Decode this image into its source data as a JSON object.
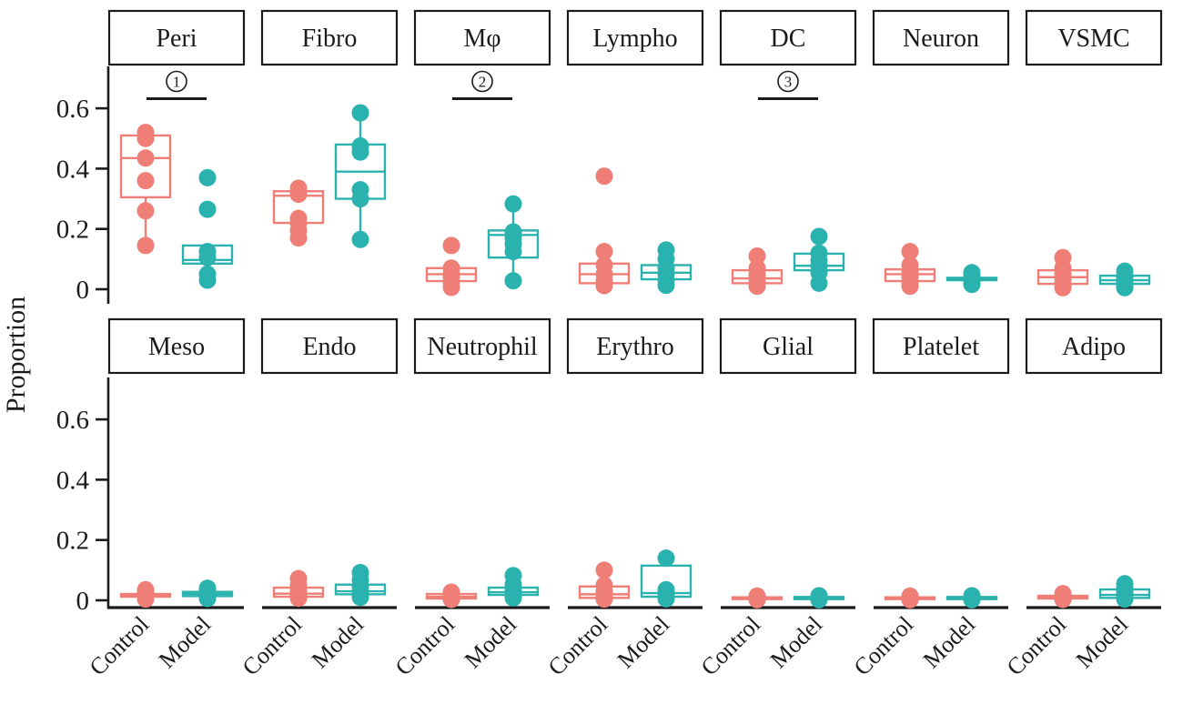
{
  "figure": {
    "ylabel": "Proportion",
    "group_labels": [
      "Control",
      "Model"
    ],
    "colors": {
      "control": "#EF7E76",
      "model": "#2AB3AE",
      "axis": "#1b1b1b",
      "panel_bg": "#ffffff"
    }
  },
  "chart_data": {
    "type": "boxplot",
    "title": "",
    "xlabel": "",
    "ylabel": "Proportion",
    "groups": [
      "Control",
      "Model"
    ],
    "group_colors": {
      "Control": "#EF7E76",
      "Model": "#2AB3AE"
    },
    "facet_grid": {
      "rows": 2,
      "cols": 7
    },
    "ylim": [
      0,
      0.75
    ],
    "grid": false,
    "legend": "none",
    "y_axis": {
      "ticks": [
        {
          "value": 0,
          "label": "0"
        },
        {
          "value": 0.2,
          "label": "0.2"
        },
        {
          "value": 0.4,
          "label": "0.4"
        },
        {
          "value": 0.6,
          "label": "0.6"
        }
      ]
    },
    "significance_note": {
      "line_y": 0.632,
      "symbol_y": 0.682
    },
    "facet_rows": [
      {
        "panels": [
          {
            "facet": "Peri",
            "significance": {
              "digit": "1",
              "symbol": "①"
            },
            "groups": {
              "Control": {
                "box": {
                  "q1": 0.305,
                  "median": 0.435,
                  "q3": 0.51
                },
                "whiskers": {
                  "min": 0.145,
                  "max": 0.52
                },
                "points": [
                  0.52,
                  0.5,
                  0.435,
                  0.36,
                  0.26,
                  0.145
                ]
              },
              "Model": {
                "box": {
                  "q1": 0.085,
                  "median": 0.097,
                  "q3": 0.145
                },
                "whiskers": {
                  "min": 0.025,
                  "max": 0.15
                },
                "points": [
                  0.37,
                  0.265,
                  0.125,
                  0.105,
                  0.05,
                  0.03
                ]
              }
            }
          },
          {
            "facet": "Fibro",
            "significance": null,
            "groups": {
              "Control": {
                "box": {
                  "q1": 0.22,
                  "median": 0.31,
                  "q3": 0.325
                },
                "whiskers": {
                  "min": 0.17,
                  "max": 0.34
                },
                "points": [
                  0.335,
                  0.315,
                  0.235,
                  0.22,
                  0.195,
                  0.17
                ]
              },
              "Model": {
                "box": {
                  "q1": 0.3,
                  "median": 0.39,
                  "q3": 0.48
                },
                "whiskers": {
                  "min": 0.165,
                  "max": 0.585
                },
                "points": [
                  0.585,
                  0.475,
                  0.455,
                  0.33,
                  0.3,
                  0.165
                ]
              }
            }
          },
          {
            "facet": "Mφ",
            "significance": {
              "digit": "2",
              "symbol": "②"
            },
            "groups": {
              "Control": {
                "box": {
                  "q1": 0.027,
                  "median": 0.05,
                  "q3": 0.07
                },
                "whiskers": {
                  "min": 0.005,
                  "max": 0.095
                },
                "points": [
                  0.145,
                  0.07,
                  0.05,
                  0.04,
                  0.02,
                  0.006
                ]
              },
              "Model": {
                "box": {
                  "q1": 0.105,
                  "median": 0.18,
                  "q3": 0.195
                },
                "whiskers": {
                  "min": 0.028,
                  "max": 0.283
                },
                "points": [
                  0.283,
                  0.19,
                  0.17,
                  0.15,
                  0.125,
                  0.028
                ]
              }
            }
          },
          {
            "facet": "Lympho",
            "significance": null,
            "groups": {
              "Control": {
                "box": {
                  "q1": 0.02,
                  "median": 0.05,
                  "q3": 0.085
                },
                "whiskers": {
                  "min": 0.012,
                  "max": 0.125
                },
                "points": [
                  0.375,
                  0.125,
                  0.08,
                  0.05,
                  0.028,
                  0.012
                ]
              },
              "Model": {
                "box": {
                  "q1": 0.033,
                  "median": 0.055,
                  "q3": 0.08
                },
                "whiskers": {
                  "min": 0.013,
                  "max": 0.13
                },
                "points": [
                  0.13,
                  0.1,
                  0.07,
                  0.05,
                  0.03,
                  0.013
                ]
              }
            }
          },
          {
            "facet": "DC",
            "significance": {
              "digit": "3",
              "symbol": "③"
            },
            "groups": {
              "Control": {
                "box": {
                  "q1": 0.02,
                  "median": 0.036,
                  "q3": 0.063
                },
                "whiskers": {
                  "min": 0.01,
                  "max": 0.11
                },
                "points": [
                  0.11,
                  0.07,
                  0.05,
                  0.038,
                  0.022,
                  0.01
                ]
              },
              "Model": {
                "box": {
                  "q1": 0.063,
                  "median": 0.078,
                  "q3": 0.118
                },
                "whiskers": {
                  "min": 0.02,
                  "max": 0.175
                },
                "points": [
                  0.175,
                  0.12,
                  0.095,
                  0.078,
                  0.055,
                  0.02
                ]
              }
            }
          },
          {
            "facet": "Neuron",
            "significance": null,
            "groups": {
              "Control": {
                "box": {
                  "q1": 0.027,
                  "median": 0.05,
                  "q3": 0.066
                },
                "whiskers": {
                  "min": 0.01,
                  "max": 0.125
                },
                "points": [
                  0.125,
                  0.08,
                  0.06,
                  0.04,
                  0.022,
                  0.01
                ]
              },
              "Model": {
                "box": {
                  "q1": 0.03,
                  "median": 0.034,
                  "q3": 0.038
                },
                "whiskers": {
                  "min": 0.018,
                  "max": 0.055
                },
                "points": [
                  0.055,
                  0.042,
                  0.035,
                  0.03,
                  0.024,
                  0.016
                ]
              }
            }
          },
          {
            "facet": "VSMC",
            "significance": null,
            "groups": {
              "Control": {
                "box": {
                  "q1": 0.018,
                  "median": 0.04,
                  "q3": 0.063
                },
                "whiskers": {
                  "min": 0.005,
                  "max": 0.105
                },
                "points": [
                  0.105,
                  0.07,
                  0.05,
                  0.035,
                  0.018,
                  0.005
                ]
              },
              "Model": {
                "box": {
                  "q1": 0.018,
                  "median": 0.03,
                  "q3": 0.045
                },
                "whiskers": {
                  "min": 0.005,
                  "max": 0.06
                },
                "points": [
                  0.06,
                  0.042,
                  0.032,
                  0.022,
                  0.014,
                  0.005
                ]
              }
            }
          }
        ]
      },
      {
        "panels": [
          {
            "facet": "Meso",
            "significance": null,
            "groups": {
              "Control": {
                "box": {
                  "q1": 0.012,
                  "median": 0.016,
                  "q3": 0.021
                },
                "whiskers": {
                  "min": 0.004,
                  "max": 0.035
                },
                "points": [
                  0.035,
                  0.025,
                  0.02,
                  0.015,
                  0.01,
                  0.004
                ]
              },
              "Model": {
                "box": {
                  "q1": 0.014,
                  "median": 0.021,
                  "q3": 0.028
                },
                "whiskers": {
                  "min": 0.006,
                  "max": 0.04
                },
                "points": [
                  0.04,
                  0.03,
                  0.024,
                  0.02,
                  0.014,
                  0.006
                ]
              }
            }
          },
          {
            "facet": "Endo",
            "significance": null,
            "groups": {
              "Control": {
                "box": {
                  "q1": 0.012,
                  "median": 0.022,
                  "q3": 0.042
                },
                "whiskers": {
                  "min": 0.007,
                  "max": 0.072
                },
                "points": [
                  0.072,
                  0.05,
                  0.032,
                  0.022,
                  0.015,
                  0.007
                ]
              },
              "Model": {
                "box": {
                  "q1": 0.02,
                  "median": 0.03,
                  "q3": 0.052
                },
                "whiskers": {
                  "min": 0.01,
                  "max": 0.092
                },
                "points": [
                  0.092,
                  0.068,
                  0.045,
                  0.03,
                  0.02,
                  0.01
                ]
              }
            }
          },
          {
            "facet": "Neutrophil",
            "significance": null,
            "groups": {
              "Control": {
                "box": {
                  "q1": 0.006,
                  "median": 0.012,
                  "q3": 0.021
                },
                "whiskers": {
                  "min": 0.003,
                  "max": 0.027
                },
                "points": [
                  0.027,
                  0.018,
                  0.013,
                  0.009,
                  0.005,
                  0.003
                ]
              },
              "Model": {
                "box": {
                  "q1": 0.018,
                  "median": 0.027,
                  "q3": 0.042
                },
                "whiskers": {
                  "min": 0.008,
                  "max": 0.082
                },
                "points": [
                  0.082,
                  0.052,
                  0.038,
                  0.028,
                  0.018,
                  0.008
                ]
              }
            }
          },
          {
            "facet": "Erythro",
            "significance": null,
            "groups": {
              "Control": {
                "box": {
                  "q1": 0.008,
                  "median": 0.02,
                  "q3": 0.046
                },
                "whiskers": {
                  "min": 0.004,
                  "max": 0.1
                },
                "points": [
                  0.1,
                  0.05,
                  0.03,
                  0.02,
                  0.012,
                  0.004
                ]
              },
              "Model": {
                "box": {
                  "q1": 0.012,
                  "median": 0.024,
                  "q3": 0.115
                },
                "whiskers": {
                  "min": 0.005,
                  "max": 0.14
                },
                "points": [
                  0.14,
                  0.035,
                  0.027,
                  0.02,
                  0.012,
                  0.005
                ]
              }
            }
          },
          {
            "facet": "Glial",
            "significance": null,
            "groups": {
              "Control": {
                "box": {
                  "q1": 0.004,
                  "median": 0.007,
                  "q3": 0.01
                },
                "whiskers": {
                  "min": 0.002,
                  "max": 0.014
                },
                "points": [
                  0.014,
                  0.01,
                  0.008,
                  0.006,
                  0.004,
                  0.002
                ]
              },
              "Model": {
                "box": {
                  "q1": 0.004,
                  "median": 0.007,
                  "q3": 0.011
                },
                "whiskers": {
                  "min": 0.002,
                  "max": 0.015
                },
                "points": [
                  0.015,
                  0.011,
                  0.008,
                  0.006,
                  0.004,
                  0.002
                ]
              }
            }
          },
          {
            "facet": "Platelet",
            "significance": null,
            "groups": {
              "Control": {
                "box": {
                  "q1": 0.004,
                  "median": 0.007,
                  "q3": 0.01
                },
                "whiskers": {
                  "min": 0.002,
                  "max": 0.014
                },
                "points": [
                  0.014,
                  0.01,
                  0.007,
                  0.005,
                  0.004,
                  0.002
                ]
              },
              "Model": {
                "box": {
                  "q1": 0.004,
                  "median": 0.007,
                  "q3": 0.011
                },
                "whiskers": {
                  "min": 0.002,
                  "max": 0.015
                },
                "points": [
                  0.015,
                  0.011,
                  0.008,
                  0.006,
                  0.004,
                  0.002
                ]
              }
            }
          },
          {
            "facet": "Adipo",
            "significance": null,
            "groups": {
              "Control": {
                "box": {
                  "q1": 0.006,
                  "median": 0.01,
                  "q3": 0.015
                },
                "whiskers": {
                  "min": 0.003,
                  "max": 0.022
                },
                "points": [
                  0.022,
                  0.016,
                  0.012,
                  0.009,
                  0.006,
                  0.003
                ]
              },
              "Model": {
                "box": {
                  "q1": 0.008,
                  "median": 0.018,
                  "q3": 0.036
                },
                "whiskers": {
                  "min": 0.004,
                  "max": 0.055
                },
                "points": [
                  0.055,
                  0.04,
                  0.028,
                  0.02,
                  0.012,
                  0.004
                ]
              }
            }
          }
        ]
      }
    ]
  }
}
